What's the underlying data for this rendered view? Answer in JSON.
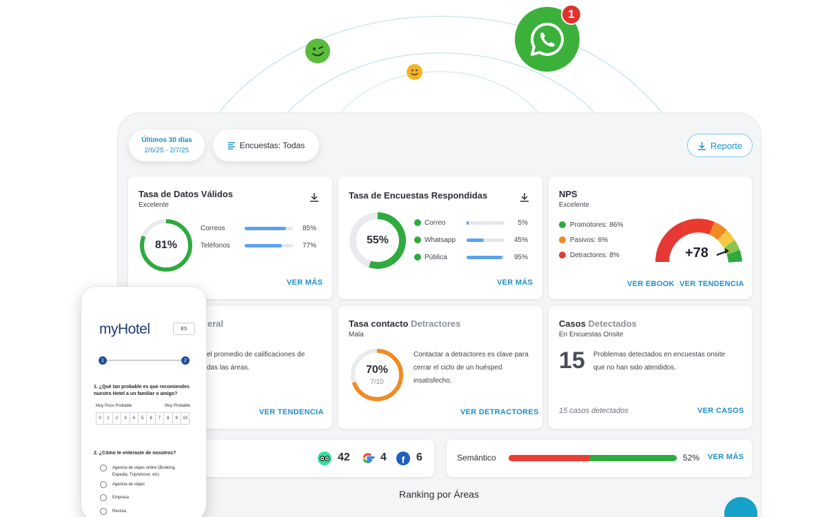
{
  "notification": {
    "whatsapp_badge": "1"
  },
  "filters": {
    "date_range_label": "Últimos 30 días",
    "date_range_value": "2/6/25 - 2/7/25",
    "surveys_label": "Encuestas: Todas",
    "report_button": "Reporte"
  },
  "cards": {
    "valid_data": {
      "title": "Tasa de Datos Válidos",
      "subtitle": "Excelente",
      "ring_value": "81%",
      "ring_fraction": 0.81,
      "rows": [
        {
          "label": "Correos",
          "percent": "85%",
          "fraction": 0.85
        },
        {
          "label": "Teléfonos",
          "percent": "77%",
          "fraction": 0.77
        }
      ],
      "link": "VER MÁS",
      "color": "#2eaa3f"
    },
    "answered": {
      "title": "Tasa de Encuestas Respondidas",
      "ring_value": "55%",
      "ring_fraction": 0.55,
      "rows": [
        {
          "label": "Correo",
          "percent": "5%",
          "fraction": 0.05
        },
        {
          "label": "Whatsapp",
          "percent": "45%",
          "fraction": 0.45
        },
        {
          "label": "Pública",
          "percent": "95%",
          "fraction": 0.95
        }
      ],
      "link": "VER MÁS",
      "color": "#2eaa3f"
    },
    "nps": {
      "title": "NPS",
      "subtitle": "Excelente",
      "items": [
        {
          "label": "Promotores: 86%",
          "color": "#2eaa3f"
        },
        {
          "label": "Pasivos: 6%",
          "color": "#f08a24"
        },
        {
          "label": "Detractores: 8%",
          "color": "#e53935"
        }
      ],
      "score": "+78",
      "link_ebook": "VER EBOOK",
      "link_trend": "VER TENDENCIA"
    },
    "general": {
      "title_partial": "eral",
      "text_line1": "el promedio de calificaciones de",
      "text_line2": "das las áreas.",
      "link": "VER TENDENCIA"
    },
    "detractors": {
      "title": "Tasa contacto",
      "title_muted": "Detractores",
      "subtitle": "Mala",
      "ring_value": "70%",
      "ring_sub": "7/10",
      "ring_fraction": 0.7,
      "text_line1": "Contactar a detractores es clave para",
      "text_line2": "cerrar el ciclo de un huésped",
      "text_line3": "insatisfecho.",
      "link": "VER DETRACTORES",
      "color": "#f08a24"
    },
    "cases": {
      "title": "Casos",
      "title_muted": "Detectados",
      "subtitle": "En Encuestas Onsite",
      "count": "15",
      "text_line1": "Problemas detectados en encuestas onsite",
      "text_line2": "que no han sido atendidos.",
      "footer": "15 casos detectados",
      "link": "VER CASOS"
    },
    "reviews": {
      "tripadvisor": "42",
      "google": "4",
      "facebook": "6"
    },
    "semantic": {
      "label": "Semántico",
      "percent": "52%",
      "positive_fraction": 0.52,
      "link": "VER MÁS"
    }
  },
  "ranking_title": "Ranking por Áreas",
  "phone": {
    "logo": "myHotel",
    "lang": "ES",
    "step1": "1",
    "step2": "2",
    "q1_line1": "1. ¿Qué tan probable es que recomiendes",
    "q1_line2": "nuestro Hotel a un familiar o amigo?",
    "scale_low": "Muy Poco Probable",
    "scale_high": "Muy Probable",
    "scale": [
      "0",
      "1",
      "2",
      "3",
      "4",
      "5",
      "6",
      "7",
      "8",
      "9",
      "10"
    ],
    "q2": "2. ¿Cómo te enteraste de nosotros?",
    "options": [
      "Agencia de viajes online (Booking, Expedia, TripAdvisor, etc)",
      "Agencia de viajes",
      "Empresa",
      "Revista"
    ]
  }
}
